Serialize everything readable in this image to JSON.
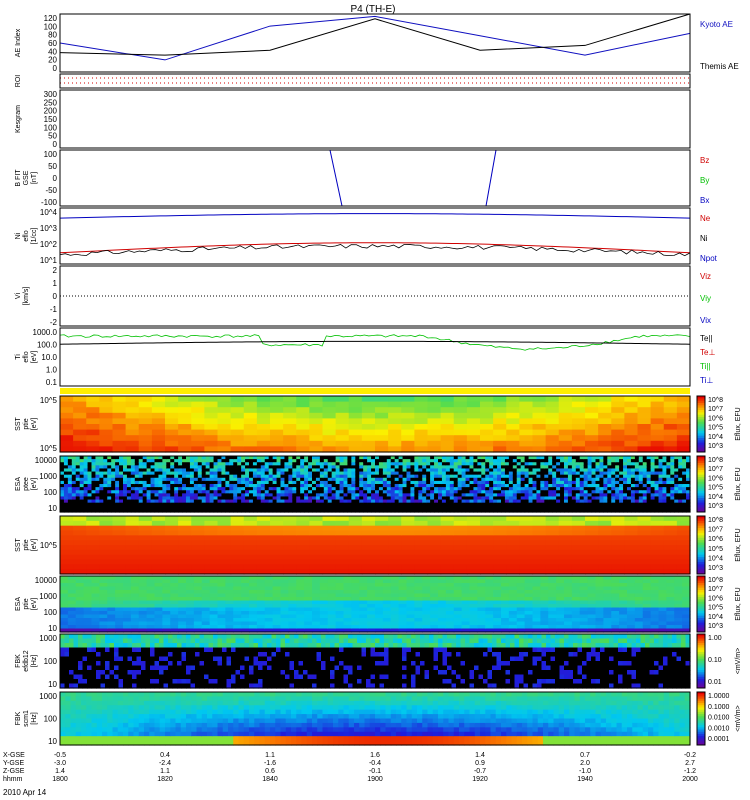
{
  "title": "P4 (TH-E)",
  "date": "2010 Apr 14",
  "colors": {
    "kyoto": "#1010c0",
    "themis": "#000000",
    "red": "#d00000",
    "green": "#00c000",
    "blue": "#0000c0"
  },
  "panels": [
    {
      "id": "ae",
      "label": [
        "AE Index"
      ],
      "ticks": [
        "120",
        "100",
        "80",
        "60",
        "40",
        "20",
        "0"
      ],
      "legend": [
        {
          "text": "Kyoto AE",
          "color": "#1010c0"
        },
        {
          "text": "Themis AE",
          "color": "#000000"
        }
      ]
    },
    {
      "id": "roi",
      "label": [
        "ROI"
      ],
      "ticks": [],
      "legend": []
    },
    {
      "id": "kgm",
      "label": [
        "Kesgram"
      ],
      "ticks": [
        "300",
        "250",
        "200",
        "150",
        "100",
        "50",
        "0"
      ],
      "legend": []
    },
    {
      "id": "bfit",
      "label": [
        "B FIT",
        "GSE",
        "[nT]"
      ],
      "ticks": [
        "100",
        "50",
        "0",
        "-50",
        "-100"
      ],
      "legend": [
        {
          "text": "Bz",
          "color": "#d00000"
        },
        {
          "text": "By",
          "color": "#00c000"
        },
        {
          "text": "Bx",
          "color": "#0000c0"
        }
      ]
    },
    {
      "id": "ni",
      "label": [
        "Ni",
        "eflo",
        "[1/cc]"
      ],
      "ticks": [
        "10^4",
        "10^3",
        "10^2",
        "10^1"
      ],
      "legend": [
        {
          "text": "Ne",
          "color": "#d00000"
        },
        {
          "text": "Ni",
          "color": "#000000"
        },
        {
          "text": "Npot",
          "color": "#0000c0"
        }
      ]
    },
    {
      "id": "vi",
      "label": [
        "Vi",
        "[km/s]"
      ],
      "ticks": [
        "2",
        "1",
        "0",
        "-1",
        "-2"
      ],
      "legend": [
        {
          "text": "Viz",
          "color": "#d00000"
        },
        {
          "text": "Viy",
          "color": "#00c000"
        },
        {
          "text": "Vix",
          "color": "#0000c0"
        }
      ]
    },
    {
      "id": "ti",
      "label": [
        "Ti",
        "eflo",
        "[eV]"
      ],
      "ticks": [
        "1000.0",
        "100.0",
        "10.0",
        "1.0",
        "0.1"
      ],
      "legend": [
        {
          "text": "Te||",
          "color": "#000000"
        },
        {
          "text": "Te⊥",
          "color": "#d00000"
        },
        {
          "text": "Ti||",
          "color": "#00c000"
        },
        {
          "text": "Ti⊥",
          "color": "#0000c0"
        }
      ]
    },
    {
      "id": "sst_e",
      "label": [
        "SST",
        "ptie",
        "[eV]"
      ],
      "ticks": [
        "10^5",
        "10^5"
      ],
      "legend": []
    },
    {
      "id": "esa_e",
      "label": [
        "ESA",
        "ptee",
        "[eV]"
      ],
      "ticks": [
        "10000",
        "1000",
        "100",
        "10"
      ],
      "legend": []
    },
    {
      "id": "sst_i",
      "label": [
        "SST",
        "ptie",
        "[eV]"
      ],
      "ticks": [
        "10^5"
      ],
      "legend": []
    },
    {
      "id": "esa_i",
      "label": [
        "ESA",
        "ptie",
        "[eV]"
      ],
      "ticks": [
        "10000",
        "1000",
        "100",
        "10"
      ],
      "legend": []
    },
    {
      "id": "fbk1",
      "label": [
        "FBK",
        "efdb12",
        "[Hz]"
      ],
      "ticks": [
        "1000",
        "100",
        "10"
      ],
      "legend": []
    },
    {
      "id": "fbk2",
      "label": [
        "FBK",
        "scm1",
        "[Hz]"
      ],
      "ticks": [
        "1000",
        "100",
        "10"
      ],
      "legend": []
    }
  ],
  "colorbars": [
    {
      "labels": [
        "10^8",
        "10^7",
        "10^6",
        "10^5",
        "10^4",
        "10^3"
      ],
      "unit": "Eflux, EFU"
    },
    {
      "labels": [
        "10^8",
        "10^7",
        "10^6",
        "10^5",
        "10^4",
        "10^3"
      ],
      "unit": "Eflux, EFU"
    },
    {
      "labels": [
        "10^8",
        "10^7",
        "10^6",
        "10^5",
        "10^4",
        "10^3"
      ],
      "unit": "Eflux, EFU"
    },
    {
      "labels": [
        "10^8",
        "10^7",
        "10^6",
        "10^5",
        "10^4",
        "10^3"
      ],
      "unit": "Eflux, EFU"
    },
    {
      "labels": [
        "1.00",
        "0.10",
        "0.01"
      ],
      "unit": "<mV/m>"
    },
    {
      "labels": [
        "1.0000",
        "0.1000",
        "0.0100",
        "0.0010",
        "0.0001"
      ],
      "unit": "<mV/m>"
    }
  ],
  "axis_rows": [
    {
      "label": "X-GSE",
      "values": [
        "-0.5",
        "0.4",
        "1.1",
        "1.6",
        "1.4",
        "0.7",
        "-0.2"
      ]
    },
    {
      "label": "Y-GSE",
      "values": [
        "-3.0",
        "-2.4",
        "-1.6",
        "-0.4",
        "0.9",
        "2.0",
        "2.7"
      ]
    },
    {
      "label": "Z-GSE",
      "values": [
        "1.4",
        "1.1",
        "0.6",
        "-0.1",
        "-0.7",
        "-1.0",
        "-1.2"
      ]
    },
    {
      "label": "hhmm",
      "values": [
        "1800",
        "1820",
        "1840",
        "1900",
        "1920",
        "1940",
        "2000"
      ]
    }
  ],
  "chart_data": {
    "type": "line",
    "title": "P4 (TH-E)",
    "x": [
      "1800",
      "1820",
      "1840",
      "1900",
      "1920",
      "1940",
      "2000"
    ],
    "series": [
      {
        "name": "Kyoto AE",
        "values": [
          60,
          25,
          95,
          115,
          75,
          35,
          80
        ]
      },
      {
        "name": "Themis AE",
        "values": [
          40,
          35,
          45,
          110,
          45,
          55,
          120
        ]
      }
    ]
  }
}
